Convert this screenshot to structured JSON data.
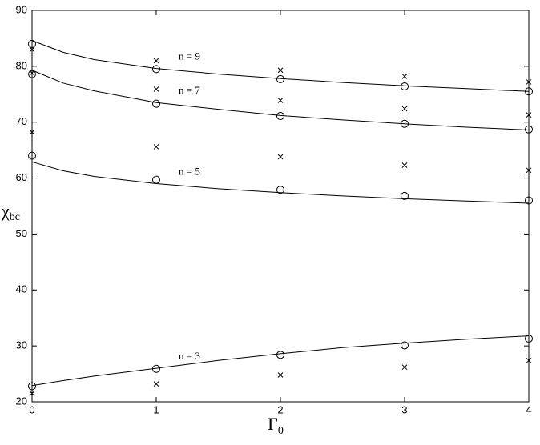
{
  "chart_data": {
    "type": "scatter",
    "xlabel": "Γ",
    "xlabel_sub": "0",
    "ylabel": "χ",
    "ylabel_sub": "bc",
    "xlim": [
      0,
      4
    ],
    "xticks": [
      0,
      1,
      2,
      3,
      4
    ],
    "ylim": [
      20,
      90
    ],
    "yticks": [
      20,
      30,
      40,
      50,
      60,
      70,
      80,
      90
    ],
    "x": [
      0,
      1,
      2,
      3,
      4
    ],
    "series": [
      {
        "marker": "o",
        "values": [
          84.0,
          79.5,
          77.7,
          76.4,
          75.5
        ]
      },
      {
        "marker": "o",
        "values": [
          78.6,
          73.3,
          71.1,
          69.7,
          68.7
        ]
      },
      {
        "marker": "o",
        "values": [
          64.0,
          59.7,
          57.9,
          56.8,
          56.0
        ]
      },
      {
        "marker": "o",
        "values": [
          22.8,
          25.9,
          28.4,
          30.1,
          31.3
        ]
      },
      {
        "marker": "x",
        "values": [
          83.0,
          81.0,
          79.3,
          78.2,
          77.2
        ]
      },
      {
        "marker": "x",
        "values": [
          78.8,
          75.9,
          73.9,
          72.4,
          71.3
        ]
      },
      {
        "marker": "x",
        "values": [
          68.2,
          65.6,
          63.8,
          62.3,
          61.4
        ]
      },
      {
        "marker": "x",
        "values": [
          21.5,
          23.2,
          24.8,
          26.2,
          27.4
        ]
      }
    ],
    "curves": {
      "x": [
        0,
        0.25,
        0.5,
        1,
        1.5,
        2,
        2.5,
        3,
        3.5,
        4
      ],
      "lines": [
        {
          "label": "n = 9",
          "values": [
            84.6,
            82.5,
            81.2,
            79.6,
            78.6,
            77.8,
            77.1,
            76.5,
            76.0,
            75.5
          ]
        },
        {
          "label": "n = 7",
          "values": [
            79.3,
            77.0,
            75.6,
            73.5,
            72.3,
            71.2,
            70.4,
            69.7,
            69.1,
            68.6
          ]
        },
        {
          "label": "n = 5",
          "values": [
            62.9,
            61.3,
            60.3,
            59.0,
            58.1,
            57.4,
            56.8,
            56.3,
            55.9,
            55.5
          ]
        },
        {
          "label": "n = 3",
          "values": [
            22.9,
            23.8,
            24.6,
            26.0,
            27.4,
            28.6,
            29.7,
            30.5,
            31.2,
            31.8
          ]
        }
      ]
    }
  }
}
